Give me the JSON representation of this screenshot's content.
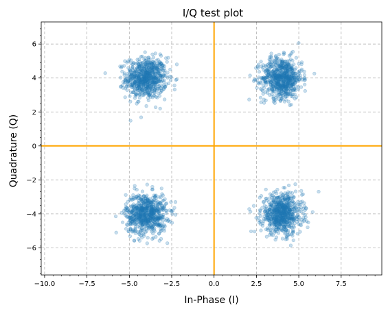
{
  "chart_data": {
    "type": "scatter",
    "title": "I/Q test plot",
    "xlabel": "In-Phase (I)",
    "ylabel": "Quadrature (Q)",
    "xlim": [
      -10.2,
      9.9
    ],
    "ylim": [
      -7.6,
      7.3
    ],
    "xticks": [
      -10.0,
      -7.5,
      -5.0,
      -2.5,
      0.0,
      2.5,
      5.0,
      7.5
    ],
    "xtick_labels": [
      "−10.0",
      "−7.5",
      "−5.0",
      "−2.5",
      "0.0",
      "2.5",
      "5.0",
      "7.5"
    ],
    "yticks": [
      -6,
      -4,
      -2,
      0,
      2,
      4,
      6
    ],
    "ytick_labels": [
      "−6",
      "−4",
      "−2",
      "0",
      "2",
      "4",
      "6"
    ],
    "grid": true,
    "reference_lines": {
      "x": 0,
      "y": 0,
      "color": "#ffa500"
    },
    "marker_color": "#1f77b4",
    "marker_alpha": 0.25,
    "series": [
      {
        "center": [
          -4,
          4
        ],
        "spread": 0.6,
        "count": 700
      },
      {
        "center": [
          4,
          4
        ],
        "spread": 0.6,
        "count": 700
      },
      {
        "center": [
          -4,
          -4
        ],
        "spread": 0.6,
        "count": 700
      },
      {
        "center": [
          4,
          -4
        ],
        "spread": 0.6,
        "count": 700
      }
    ]
  }
}
